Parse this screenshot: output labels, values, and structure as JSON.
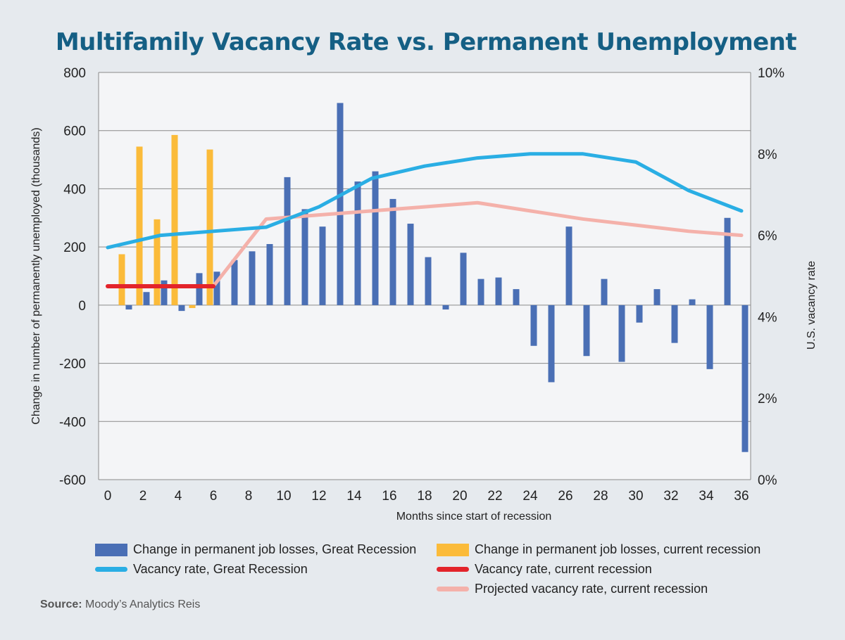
{
  "title": "Multifamily Vacancy Rate vs. Permanent Unemployment",
  "source": {
    "label": "Source:",
    "text": "Moody’s Analytics Reis"
  },
  "chart_data": {
    "type": "bar",
    "title": "Multifamily Vacancy Rate vs. Permanent Unemployment",
    "xlabel": "Months since start of recession",
    "ylabel": "Change in number of permanently unemployed (thousands)",
    "y2label": "U.S. vacancy rate",
    "xlim": [
      0,
      36
    ],
    "ylim": [
      -600,
      800
    ],
    "y2lim": [
      0,
      10
    ],
    "x_ticks": [
      0,
      2,
      4,
      6,
      8,
      10,
      12,
      14,
      16,
      18,
      20,
      22,
      24,
      26,
      28,
      30,
      32,
      34,
      36
    ],
    "y_ticks": [
      -600,
      -400,
      -200,
      0,
      200,
      400,
      600,
      800
    ],
    "y_tick_labels": [
      "-600",
      "-400",
      "-200",
      "0",
      "200",
      "400",
      "600",
      "800"
    ],
    "y2_ticks": [
      0,
      2,
      4,
      6,
      8,
      10
    ],
    "y2_tick_labels": [
      "0%",
      "2%",
      "4%",
      "6%",
      "8%",
      "10%"
    ],
    "grid": true,
    "legend_position": "bottom",
    "series": [
      {
        "name": "Change in permanent job losses, Great Recession",
        "type": "bar",
        "color": "#4a6fb5",
        "axis": "left",
        "x": [
          1,
          2,
          3,
          4,
          5,
          6,
          7,
          8,
          9,
          10,
          11,
          12,
          13,
          14,
          15,
          16,
          17,
          18,
          19,
          20,
          21,
          22,
          23,
          24,
          25,
          26,
          27,
          28,
          29,
          30,
          31,
          32,
          33,
          34,
          35,
          36
        ],
        "values": [
          -15,
          45,
          85,
          -20,
          110,
          115,
          155,
          185,
          210,
          440,
          330,
          270,
          695,
          425,
          460,
          365,
          280,
          165,
          -15,
          180,
          90,
          95,
          55,
          -140,
          -265,
          270,
          -175,
          90,
          -195,
          -60,
          55,
          -130,
          20,
          -220,
          300,
          -505
        ]
      },
      {
        "name": "Change in permanent job losses, current recession",
        "type": "bar",
        "color": "#fbbb3a",
        "axis": "left",
        "x": [
          1,
          2,
          3,
          4,
          5,
          6
        ],
        "values": [
          175,
          545,
          295,
          585,
          -10,
          535
        ]
      },
      {
        "name": "Vacancy rate, Great Recession",
        "type": "line",
        "color": "#2aaee4",
        "axis": "right",
        "x": [
          0,
          3,
          6,
          9,
          12,
          15,
          18,
          21,
          24,
          27,
          30,
          33,
          36
        ],
        "values": [
          5.7,
          6.0,
          6.1,
          6.2,
          6.7,
          7.4,
          7.7,
          7.9,
          8.0,
          8.0,
          7.8,
          7.1,
          6.6
        ]
      },
      {
        "name": "Vacancy rate, current recession",
        "type": "line",
        "color": "#e3242b",
        "axis": "right",
        "x": [
          0,
          6
        ],
        "values": [
          4.75,
          4.75
        ]
      },
      {
        "name": "Projected vacancy rate, current recession",
        "type": "line",
        "color": "#f4b1aa",
        "axis": "right",
        "x": [
          6,
          9,
          12,
          15,
          18,
          21,
          24,
          27,
          30,
          33,
          36
        ],
        "values": [
          4.75,
          6.4,
          6.5,
          6.6,
          6.7,
          6.8,
          6.6,
          6.4,
          6.25,
          6.1,
          6.0
        ]
      }
    ]
  }
}
